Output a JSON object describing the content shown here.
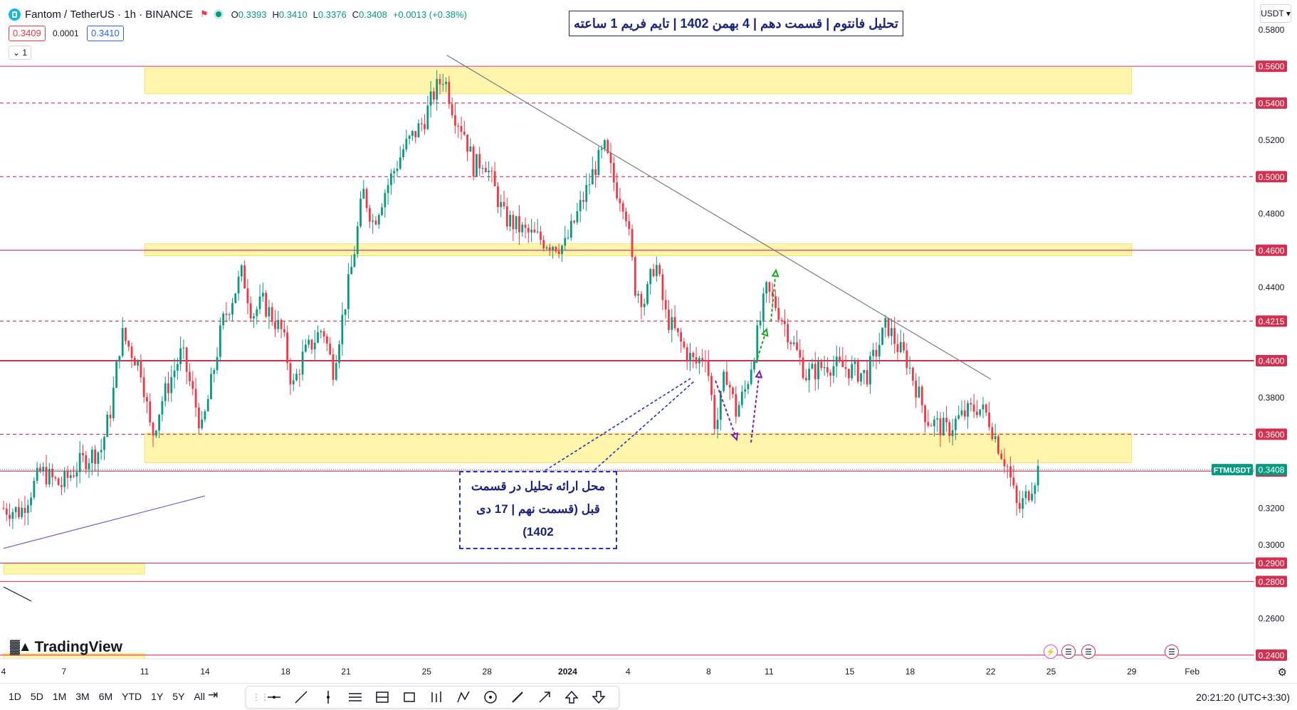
{
  "header": {
    "symbol": "Fantom",
    "quote": "TetherUS",
    "interval": "1h",
    "exchange": "BINANCE",
    "open_label": "O",
    "open": "0.3393",
    "high_label": "H",
    "high": "0.3410",
    "low_label": "L",
    "low": "0.3376",
    "close_label": "C",
    "close": "0.3408",
    "change": "+0.0013 (+0.38%)",
    "bid": "0.3409",
    "spread": "0.0001",
    "ask": "0.3410",
    "interval_button": "1"
  },
  "title_annotation": "تحلیل فانتوم | قسمت دهم | 4 بهمن 1402 | تایم فریم 1 ساعته",
  "note_annotation": {
    "line1": "محل ارائه تحلیل در قسمت",
    "line2": "قبل (قسمت نهم | 17 دی",
    "line3": "1402)"
  },
  "currency_selector": "USDT",
  "symbol_tag": "FTMUSDT",
  "logo_text": "TradingView",
  "bottom_bar": {
    "ranges": [
      "1D",
      "5D",
      "1M",
      "3M",
      "6M",
      "YTD",
      "1Y",
      "5Y",
      "All"
    ],
    "time": "20:21:20 (UTC+3:30)"
  },
  "colors": {
    "up": "#089981",
    "down": "#f23645",
    "level_line": "#d32f4f",
    "zone_fill": "#fff59d",
    "trendline": "#787b86",
    "support_trendline": "#7e57c2",
    "annotation_blue": "#2430c8",
    "arrow_purple": "#7b1fa2",
    "arrow_green": "#1aa81a"
  },
  "chart_data": {
    "type": "candlestick",
    "y_range": [
      0.238,
      0.596
    ],
    "y_ticks": [
      "0.5800",
      "0.5600",
      "0.5400",
      "0.5200",
      "0.5000",
      "0.4800",
      "0.4600",
      "0.4400",
      "0.4215",
      "0.4000",
      "0.3800",
      "0.3600",
      "0.3400",
      "0.3200",
      "0.3000",
      "0.2900",
      "0.2800",
      "0.2600",
      "0.2400"
    ],
    "highlighted_price_labels": [
      "0.5600",
      "0.5400",
      "0.5000",
      "0.4600",
      "0.4215",
      "0.4000",
      "0.3600",
      "0.3400",
      "0.2900",
      "0.2800",
      "0.2400"
    ],
    "current_price": "0.3408",
    "x_ticks": [
      "4",
      "7",
      "11",
      "14",
      "18",
      "21",
      "25",
      "28",
      "2024",
      "4",
      "8",
      "11",
      "15",
      "18",
      "22",
      "25",
      "29",
      "Feb"
    ],
    "horizontal_levels": [
      {
        "price": 0.56,
        "style": "solid"
      },
      {
        "price": 0.54,
        "style": "dashed"
      },
      {
        "price": 0.5,
        "style": "dashed"
      },
      {
        "price": 0.46,
        "style": "solid"
      },
      {
        "price": 0.4215,
        "style": "dashed"
      },
      {
        "price": 0.4,
        "style": "solid"
      },
      {
        "price": 0.36,
        "style": "dashed"
      },
      {
        "price": 0.34,
        "style": "solid"
      },
      {
        "price": 0.29,
        "style": "solid"
      },
      {
        "price": 0.28,
        "style": "solid"
      },
      {
        "price": 0.24,
        "style": "solid"
      }
    ],
    "zones": [
      {
        "from_date": "Dec 11",
        "to_date": "Jan 29",
        "low": 0.545,
        "high": 0.559
      },
      {
        "from_date": "Dec 11",
        "to_date": "Jan 29",
        "low": 0.457,
        "high": 0.4635
      },
      {
        "from_date": "Dec 11",
        "to_date": "Jan 29",
        "low": 0.3445,
        "high": 0.3605
      },
      {
        "from_date": "Dec 4",
        "to_date": "Dec 11",
        "low": 0.284,
        "high": 0.2895
      },
      {
        "from_date": "Dec 4",
        "to_date": "Dec 11",
        "low": 0.236,
        "high": 0.241
      }
    ],
    "trendlines": [
      {
        "name": "descending resistance",
        "from": {
          "date": "Dec 26",
          "price": 0.566
        },
        "to": {
          "date": "Jan 22",
          "price": 0.39
        }
      },
      {
        "name": "ascending support",
        "from": {
          "date": "Dec 4",
          "price": 0.298
        },
        "to": {
          "date": "Dec 14",
          "price": 0.3265
        }
      }
    ],
    "price_path": [
      [
        "Dec 4",
        0.32
      ],
      [
        "Dec 5",
        0.318
      ],
      [
        "Dec 6",
        0.34
      ],
      [
        "Dec 7",
        0.332
      ],
      [
        "Dec 8",
        0.345
      ],
      [
        "Dec 9",
        0.352
      ],
      [
        "Dec 9.5",
        0.375
      ],
      [
        "Dec 10",
        0.415
      ],
      [
        "Dec 11",
        0.395
      ],
      [
        "Dec 11.5",
        0.358
      ],
      [
        "Dec 12",
        0.378
      ],
      [
        "Dec 13",
        0.405
      ],
      [
        "Dec 14",
        0.362
      ],
      [
        "Dec 14.5",
        0.39
      ],
      [
        "Dec 15",
        0.42
      ],
      [
        "Dec 16",
        0.448
      ],
      [
        "Dec 16.5",
        0.425
      ],
      [
        "Dec 17",
        0.432
      ],
      [
        "Dec 18",
        0.415
      ],
      [
        "Dec 18.5",
        0.385
      ],
      [
        "Dec 19",
        0.402
      ],
      [
        "Dec 20",
        0.418
      ],
      [
        "Dec 20.5",
        0.395
      ],
      [
        "Dec 21",
        0.425
      ],
      [
        "Dec 21.5",
        0.455
      ],
      [
        "Dec 22",
        0.492
      ],
      [
        "Dec 22.5",
        0.475
      ],
      [
        "Dec 23",
        0.49
      ],
      [
        "Dec 24",
        0.515
      ],
      [
        "Dec 25",
        0.53
      ],
      [
        "Dec 25.5",
        0.545
      ],
      [
        "Dec 26",
        0.555
      ],
      [
        "Dec 26.5",
        0.535
      ],
      [
        "Dec 27",
        0.525
      ],
      [
        "Dec 27.5",
        0.505
      ],
      [
        "Dec 28",
        0.51
      ],
      [
        "Dec 29",
        0.478
      ],
      [
        "Dec 30",
        0.47
      ],
      [
        "Dec 31",
        0.465
      ],
      [
        "Jan 1",
        0.462
      ],
      [
        "Jan 2",
        0.49
      ],
      [
        "Jan 2.5",
        0.505
      ],
      [
        "Jan 3",
        0.515
      ],
      [
        "Jan 3.5",
        0.495
      ],
      [
        "Jan 4",
        0.485
      ],
      [
        "Jan 4.5",
        0.44
      ],
      [
        "Jan 5",
        0.432
      ],
      [
        "Jan 5.5",
        0.455
      ],
      [
        "Jan 6",
        0.425
      ],
      [
        "Jan 7",
        0.405
      ],
      [
        "Jan 7.5",
        0.398
      ],
      [
        "Jan 8",
        0.405
      ],
      [
        "Jan 8.5",
        0.362
      ],
      [
        "Jan 9",
        0.395
      ],
      [
        "Jan 9.5",
        0.372
      ],
      [
        "Jan 10",
        0.385
      ],
      [
        "Jan 10.5",
        0.41
      ],
      [
        "Jan 11",
        0.438
      ],
      [
        "Jan 11.5",
        0.43
      ],
      [
        "Jan 12",
        0.418
      ],
      [
        "Jan 13",
        0.392
      ],
      [
        "Jan 14",
        0.398
      ],
      [
        "Jan 15",
        0.396
      ],
      [
        "Jan 16",
        0.392
      ],
      [
        "Jan 17",
        0.42
      ],
      [
        "Jan 17.5",
        0.408
      ],
      [
        "Jan 18",
        0.4
      ],
      [
        "Jan 19",
        0.368
      ],
      [
        "Jan 20",
        0.362
      ],
      [
        "Jan 20.5",
        0.368
      ],
      [
        "Jan 21",
        0.372
      ],
      [
        "Jan 21.5",
        0.375
      ],
      [
        "Jan 22",
        0.37
      ],
      [
        "Jan 22.5",
        0.355
      ],
      [
        "Jan 23",
        0.342
      ],
      [
        "Jan 23.5",
        0.318
      ],
      [
        "Jan 24",
        0.328
      ],
      [
        "Jan 24.5",
        0.3408
      ]
    ]
  }
}
